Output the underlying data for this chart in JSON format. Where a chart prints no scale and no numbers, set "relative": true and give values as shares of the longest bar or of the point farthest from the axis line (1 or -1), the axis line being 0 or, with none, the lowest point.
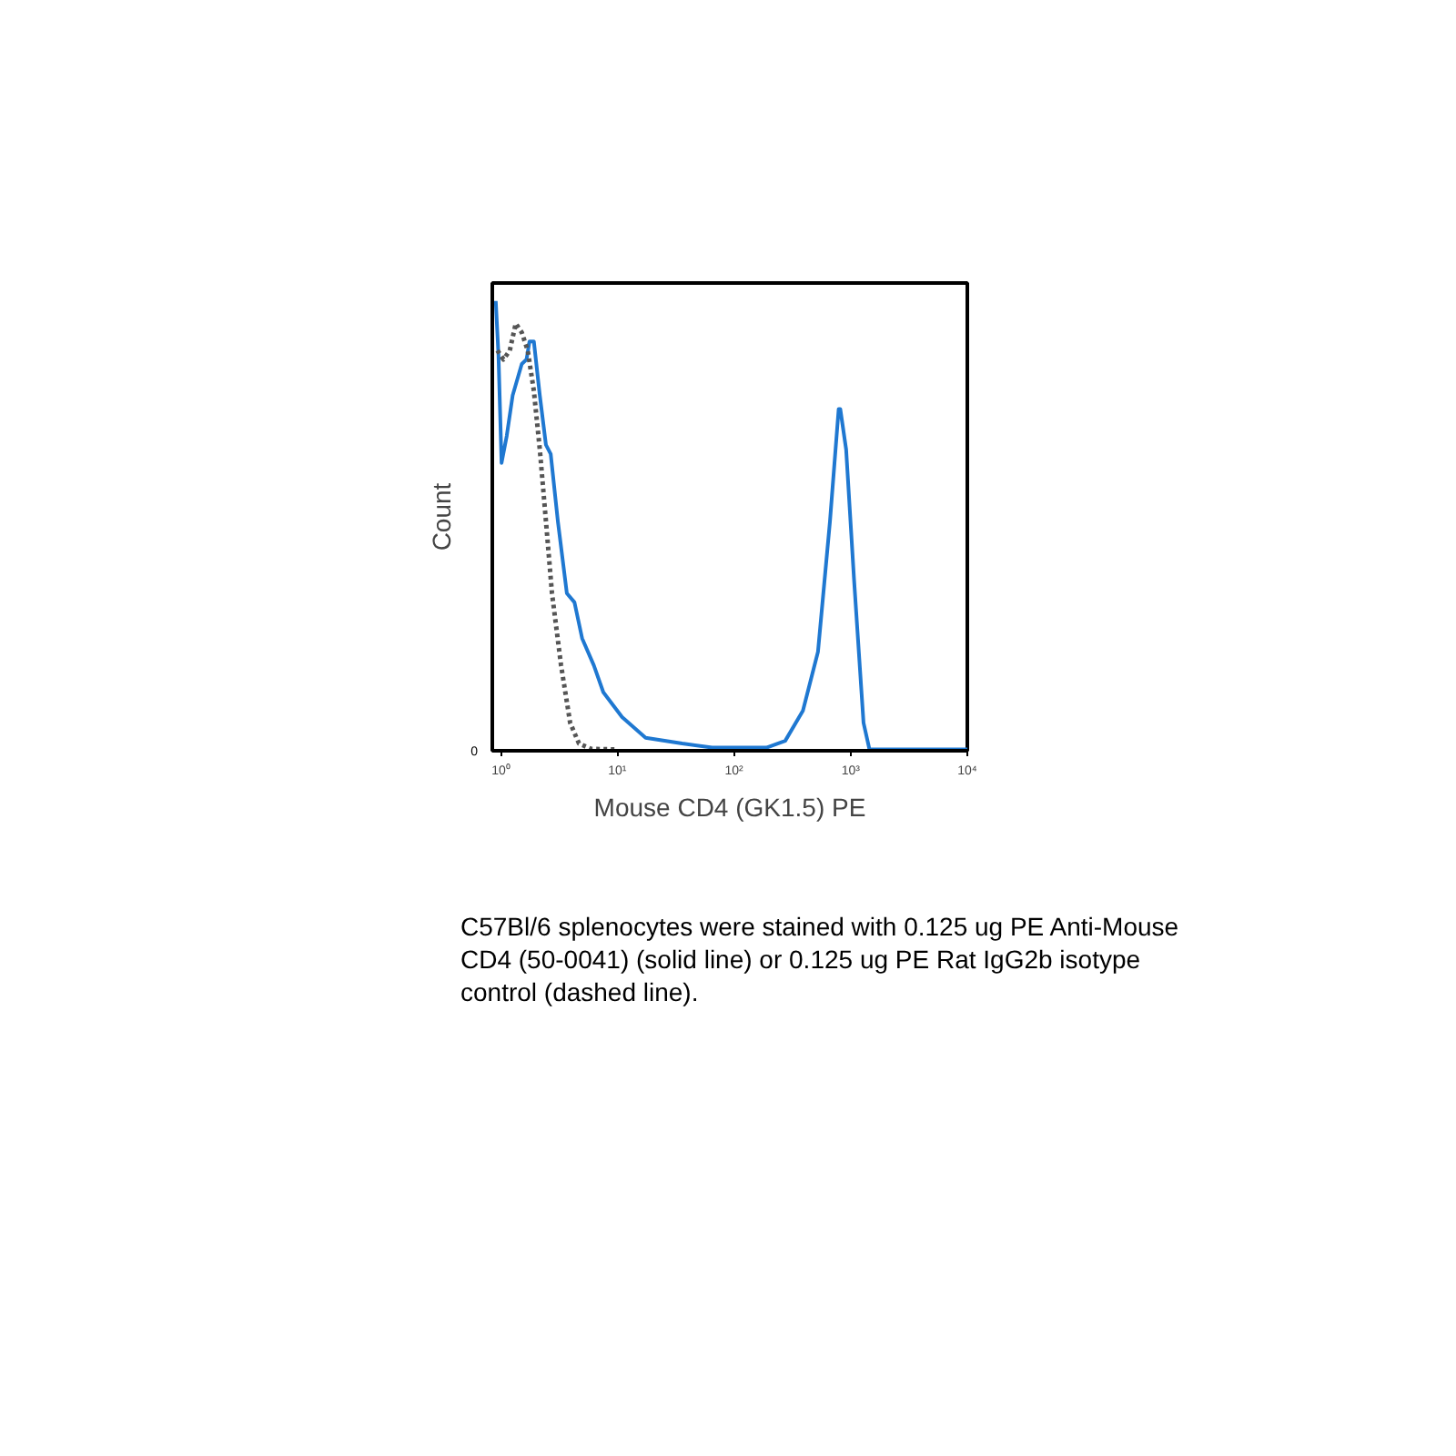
{
  "chart_data": {
    "type": "line",
    "relative": true,
    "xlabel": "Mouse CD4 (GK1.5) PE",
    "ylabel": "Count",
    "log": "x",
    "grid": false,
    "xlim": [
      0.85,
      10000
    ],
    "xticks": [
      {
        "value": 1,
        "label": "10⁰"
      },
      {
        "value": 10,
        "label": "10¹"
      },
      {
        "value": 100,
        "label": "10²"
      },
      {
        "value": 1000,
        "label": "10³"
      },
      {
        "value": 10000,
        "label": "10⁴"
      }
    ],
    "series": [
      {
        "color": "#1f78d1",
        "line_style": "solid",
        "x": [
          0.91,
          0.96,
          1.02,
          1.13,
          1.27,
          1.52,
          1.67,
          1.77,
          1.93,
          2.17,
          2.45,
          2.69,
          3.1,
          3.7,
          4.3,
          5.0,
          6.3,
          7.6,
          11,
          17.5,
          36,
          65,
          190,
          275,
          390,
          525,
          665,
          790,
          815,
          915,
          1070,
          1290,
          1450,
          10000
        ],
        "values": [
          1.0,
          0.88,
          0.64,
          0.7,
          0.79,
          0.86,
          0.87,
          0.91,
          0.91,
          0.79,
          0.68,
          0.66,
          0.51,
          0.35,
          0.33,
          0.25,
          0.19,
          0.13,
          0.075,
          0.029,
          0.016,
          0.007,
          0.007,
          0.022,
          0.089,
          0.22,
          0.51,
          0.76,
          0.76,
          0.67,
          0.38,
          0.062,
          0.003,
          0.003
        ]
      },
      {
        "color": "#555555",
        "line_style": "dotted",
        "x": [
          0.94,
          1.06,
          1.2,
          1.35,
          1.52,
          1.71,
          1.93,
          2.17,
          2.45,
          2.76,
          3.3,
          3.95,
          4.7,
          6.0,
          9.7
        ],
        "values": [
          0.89,
          0.87,
          0.89,
          0.95,
          0.93,
          0.89,
          0.8,
          0.67,
          0.51,
          0.35,
          0.19,
          0.062,
          0.016,
          0.004,
          0.003
        ]
      }
    ],
    "annotations": [
      "0",
      "C57Bl/6 splenocytes were stained with 0.125 ug PE Anti-Mouse CD4 (50-0041) (solid line) or 0.125 ug PE Rat IgG2b isotype control (dashed line)."
    ]
  }
}
